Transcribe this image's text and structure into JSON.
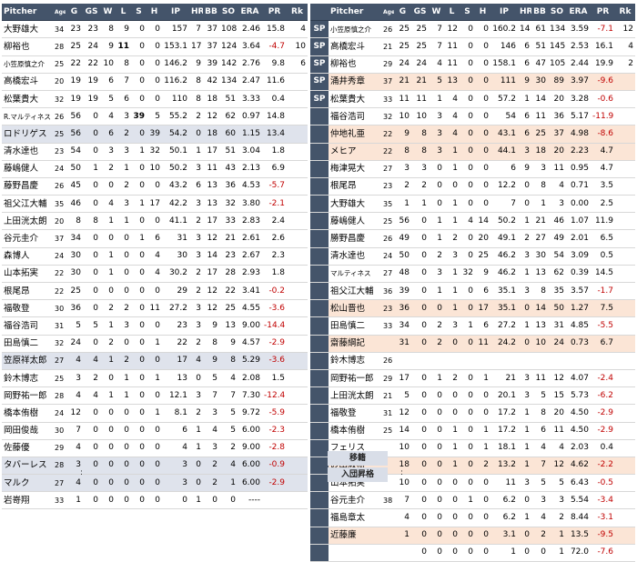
{
  "headers": {
    "pitcher": "Pitcher",
    "age": "Age",
    "g": "G",
    "gs": "GS",
    "w": "W",
    "l": "L",
    "s": "S",
    "h": "H",
    "ip": "IP",
    "hr": "HR",
    "bb": "BB",
    "so": "SO",
    "era": "ERA",
    "pr": "PR",
    "rk": "Rk"
  },
  "left_rows": [
    {
      "name": "大野雄大",
      "age": "34",
      "g": "23",
      "gs": "23",
      "w": "8",
      "l": "9",
      "s": "0",
      "h": "0",
      "ip": "157",
      "hr": "7",
      "bb": "37",
      "so": "108",
      "era": "2.46",
      "pr": "15.8",
      "rk": "4"
    },
    {
      "name": "柳裕也",
      "age": "28",
      "g": "25",
      "gs": "24",
      "w": "9",
      "l": "11",
      "s": "0",
      "h": "0",
      "ip": "153.1",
      "hr": "17",
      "bb": "37",
      "so": "124",
      "era": "3.64",
      "pr": "-4.7",
      "rk": "10"
    },
    {
      "name": "小笠原慎之介",
      "age": "25",
      "g": "22",
      "gs": "22",
      "w": "10",
      "l": "8",
      "s": "0",
      "h": "0",
      "ip": "146.2",
      "hr": "9",
      "bb": "39",
      "so": "142",
      "era": "2.76",
      "pr": "9.8",
      "rk": "6"
    },
    {
      "name": "高橋宏斗",
      "age": "20",
      "g": "19",
      "gs": "19",
      "w": "6",
      "l": "7",
      "s": "0",
      "h": "0",
      "ip": "116.2",
      "hr": "8",
      "bb": "42",
      "so": "134",
      "era": "2.47",
      "pr": "11.6",
      "rk": ""
    },
    {
      "name": "松葉貴大",
      "age": "32",
      "g": "19",
      "gs": "19",
      "w": "5",
      "l": "6",
      "s": "0",
      "h": "0",
      "ip": "110",
      "hr": "8",
      "bb": "18",
      "so": "51",
      "era": "3.33",
      "pr": "0.4",
      "rk": ""
    },
    {
      "name": "R.マルティネス",
      "age": "26",
      "g": "56",
      "gs": "0",
      "w": "4",
      "l": "3",
      "s": "39",
      "h": "5",
      "ip": "55.2",
      "hr": "2",
      "bb": "12",
      "so": "62",
      "era": "0.97",
      "pr": "14.8",
      "rk": ""
    },
    {
      "name": "ロドリゲス",
      "age": "25",
      "g": "56",
      "gs": "0",
      "w": "6",
      "l": "2",
      "s": "0",
      "h": "39",
      "ip": "54.2",
      "hr": "0",
      "bb": "18",
      "so": "60",
      "era": "1.15",
      "pr": "13.4",
      "rk": ""
    },
    {
      "name": "清水達也",
      "age": "23",
      "g": "54",
      "gs": "0",
      "w": "3",
      "l": "3",
      "s": "1",
      "h": "32",
      "ip": "50.1",
      "hr": "1",
      "bb": "17",
      "so": "51",
      "era": "3.04",
      "pr": "1.8",
      "rk": ""
    },
    {
      "name": "藤嶋健人",
      "age": "24",
      "g": "50",
      "gs": "1",
      "w": "2",
      "l": "1",
      "s": "0",
      "h": "10",
      "ip": "50.2",
      "hr": "3",
      "bb": "11",
      "so": "43",
      "era": "2.13",
      "pr": "6.9",
      "rk": ""
    },
    {
      "name": "藤野昌慶",
      "age": "26",
      "g": "45",
      "gs": "0",
      "w": "0",
      "l": "2",
      "s": "0",
      "h": "0",
      "ip": "43.2",
      "hr": "6",
      "bb": "13",
      "so": "36",
      "era": "4.53",
      "pr": "-5.7",
      "rk": ""
    },
    {
      "name": "祖父江大輔",
      "age": "35",
      "g": "46",
      "gs": "0",
      "w": "4",
      "l": "3",
      "s": "1",
      "h": "17",
      "ip": "42.2",
      "hr": "3",
      "bb": "13",
      "so": "32",
      "era": "3.80",
      "pr": "-2.1",
      "rk": ""
    },
    {
      "name": "上田洸太朗",
      "age": "20",
      "g": "8",
      "gs": "8",
      "w": "1",
      "l": "1",
      "s": "0",
      "h": "0",
      "ip": "41.1",
      "hr": "2",
      "bb": "17",
      "so": "33",
      "era": "2.83",
      "pr": "2.4",
      "rk": ""
    },
    {
      "name": "谷元圭介",
      "age": "37",
      "g": "34",
      "gs": "0",
      "w": "0",
      "l": "0",
      "s": "1",
      "h": "6",
      "ip": "31",
      "hr": "3",
      "bb": "12",
      "so": "21",
      "era": "2.61",
      "pr": "2.6",
      "rk": ""
    },
    {
      "name": "森博人",
      "age": "24",
      "g": "30",
      "gs": "0",
      "w": "1",
      "l": "0",
      "s": "0",
      "h": "4",
      "ip": "30",
      "hr": "3",
      "bb": "14",
      "so": "23",
      "era": "2.67",
      "pr": "2.3",
      "rk": ""
    },
    {
      "name": "山本拓実",
      "age": "22",
      "g": "30",
      "gs": "0",
      "w": "1",
      "l": "0",
      "s": "0",
      "h": "4",
      "ip": "30.2",
      "hr": "2",
      "bb": "17",
      "so": "28",
      "era": "2.93",
      "pr": "1.8",
      "rk": ""
    },
    {
      "name": "根尾昂",
      "age": "22",
      "g": "25",
      "gs": "0",
      "w": "0",
      "l": "0",
      "s": "0",
      "h": "0",
      "ip": "29",
      "hr": "2",
      "bb": "12",
      "so": "22",
      "era": "3.41",
      "pr": "-0.2",
      "rk": ""
    },
    {
      "name": "福敬登",
      "age": "30",
      "g": "36",
      "gs": "0",
      "w": "2",
      "l": "2",
      "s": "0",
      "h": "11",
      "ip": "27.2",
      "hr": "3",
      "bb": "12",
      "so": "25",
      "era": "4.55",
      "pr": "-3.6",
      "rk": ""
    },
    {
      "name": "福谷浩司",
      "age": "31",
      "g": "5",
      "gs": "5",
      "w": "1",
      "l": "3",
      "s": "0",
      "h": "0",
      "ip": "23",
      "hr": "3",
      "bb": "9",
      "so": "13",
      "era": "9.00",
      "pr": "-14.4",
      "rk": ""
    },
    {
      "name": "田島慎二",
      "age": "32",
      "g": "24",
      "gs": "0",
      "w": "2",
      "l": "0",
      "s": "0",
      "h": "1",
      "ip": "22",
      "hr": "2",
      "bb": "8",
      "so": "9",
      "era": "4.57",
      "pr": "-2.9",
      "rk": ""
    },
    {
      "name": "笠原祥太郎",
      "age": "27",
      "g": "4",
      "gs": "4",
      "w": "1",
      "l": "2",
      "s": "0",
      "h": "0",
      "ip": "17",
      "hr": "4",
      "bb": "9",
      "so": "8",
      "era": "5.29",
      "pr": "-3.6",
      "rk": ""
    },
    {
      "name": "鈴木博志",
      "age": "25",
      "g": "3",
      "gs": "2",
      "w": "0",
      "l": "1",
      "s": "0",
      "h": "1",
      "ip": "13",
      "hr": "0",
      "bb": "5",
      "so": "4",
      "era": "2.08",
      "pr": "1.5",
      "rk": ""
    },
    {
      "name": "岡野祐一郎",
      "age": "28",
      "g": "4",
      "gs": "4",
      "w": "1",
      "l": "1",
      "s": "0",
      "h": "0",
      "ip": "12.1",
      "hr": "3",
      "bb": "7",
      "so": "7",
      "era": "7.30",
      "pr": "-12.4",
      "rk": ""
    },
    {
      "name": "橋本侑樹",
      "age": "24",
      "g": "12",
      "gs": "0",
      "w": "0",
      "l": "0",
      "s": "0",
      "h": "1",
      "ip": "8.1",
      "hr": "2",
      "bb": "3",
      "so": "5",
      "era": "9.72",
      "pr": "-5.9",
      "rk": ""
    },
    {
      "name": "岡田俊哉",
      "age": "30",
      "g": "7",
      "gs": "0",
      "w": "0",
      "l": "0",
      "s": "0",
      "h": "0",
      "ip": "6",
      "hr": "1",
      "bb": "4",
      "so": "5",
      "era": "6.00",
      "pr": "-2.3",
      "rk": ""
    },
    {
      "name": "佐藤優",
      "age": "29",
      "g": "4",
      "gs": "0",
      "w": "0",
      "l": "0",
      "s": "0",
      "h": "0",
      "ip": "4",
      "hr": "1",
      "bb": "3",
      "so": "2",
      "era": "9.00",
      "pr": "-2.8",
      "rk": ""
    },
    {
      "name": "タバーレス",
      "age": "28",
      "g": "3",
      "gs": "0",
      "w": "0",
      "l": "0",
      "s": "0",
      "h": "0",
      "ip": "3",
      "hr": "0",
      "bb": "2",
      "so": "4",
      "era": "6.00",
      "pr": "-0.9",
      "rk": ""
    },
    {
      "name": "マルク",
      "age": "27",
      "g": "4",
      "gs": "0",
      "w": "0",
      "l": "0",
      "s": "0",
      "h": "0",
      "ip": "3",
      "hr": "0",
      "bb": "2",
      "so": "1",
      "era": "6.00",
      "pr": "-2.9",
      "rk": ""
    },
    {
      "name": "岩嵜翔",
      "age": "33",
      "g": "1",
      "gs": "0",
      "w": "0",
      "l": "0",
      "s": "0",
      "h": "0",
      "ip": "0",
      "hr": "1",
      "bb": "0",
      "so": "0",
      "era": "----",
      "pr": "",
      "rk": ""
    }
  ],
  "sp_label": "SP",
  "right_rows": [
    {
      "name": "小笠原慎之介",
      "age": "26",
      "g": "25",
      "gs": "25",
      "w": "7",
      "l": "12",
      "s": "0",
      "h": "0",
      "ip": "160.2",
      "hr": "14",
      "bb": "61",
      "so": "134",
      "era": "3.59",
      "pr": "-7.1",
      "rk": "12"
    },
    {
      "name": "高橋宏斗",
      "age": "21",
      "g": "25",
      "gs": "25",
      "w": "7",
      "l": "11",
      "s": "0",
      "h": "0",
      "ip": "146",
      "hr": "6",
      "bb": "51",
      "so": "145",
      "era": "2.53",
      "pr": "16.1",
      "rk": "4"
    },
    {
      "name": "柳裕也",
      "age": "29",
      "g": "24",
      "gs": "24",
      "w": "4",
      "l": "11",
      "s": "0",
      "h": "0",
      "ip": "158.1",
      "hr": "6",
      "bb": "47",
      "so": "105",
      "era": "2.44",
      "pr": "19.9",
      "rk": "2"
    },
    {
      "name": "涌井秀章",
      "age": "37",
      "g": "21",
      "gs": "21",
      "w": "5",
      "l": "13",
      "s": "0",
      "h": "0",
      "ip": "111",
      "hr": "9",
      "bb": "30",
      "so": "89",
      "era": "3.97",
      "pr": "-9.6",
      "rk": ""
    },
    {
      "name": "松葉貴大",
      "age": "33",
      "g": "11",
      "gs": "11",
      "w": "1",
      "l": "4",
      "s": "0",
      "h": "0",
      "ip": "57.2",
      "hr": "1",
      "bb": "14",
      "so": "20",
      "era": "3.28",
      "pr": "-0.6",
      "rk": ""
    },
    {
      "name": "福谷浩司",
      "age": "32",
      "g": "10",
      "gs": "10",
      "w": "3",
      "l": "4",
      "s": "0",
      "h": "0",
      "ip": "54",
      "hr": "6",
      "bb": "11",
      "so": "36",
      "era": "5.17",
      "pr": "-11.9",
      "rk": ""
    },
    {
      "name": "仲地礼亜",
      "age": "22",
      "g": "9",
      "gs": "8",
      "w": "3",
      "l": "4",
      "s": "0",
      "h": "0",
      "ip": "43.1",
      "hr": "6",
      "bb": "25",
      "so": "37",
      "era": "4.98",
      "pr": "-8.6",
      "rk": ""
    },
    {
      "name": "メヒア",
      "age": "22",
      "g": "8",
      "gs": "8",
      "w": "3",
      "l": "1",
      "s": "0",
      "h": "0",
      "ip": "44.1",
      "hr": "3",
      "bb": "18",
      "so": "20",
      "era": "2.23",
      "pr": "4.7",
      "rk": ""
    },
    {
      "name": "梅津晃大",
      "age": "27",
      "g": "3",
      "gs": "3",
      "w": "0",
      "l": "1",
      "s": "0",
      "h": "0",
      "ip": "6",
      "hr": "9",
      "bb": "3",
      "so": "11",
      "era": "0.95",
      "pr": "4.7",
      "rk": ""
    },
    {
      "name": "根尾昂",
      "age": "23",
      "g": "2",
      "gs": "2",
      "w": "0",
      "l": "0",
      "s": "0",
      "h": "0",
      "ip": "12.2",
      "hr": "0",
      "bb": "8",
      "so": "4",
      "era": "0.71",
      "pr": "3.5",
      "rk": ""
    },
    {
      "name": "大野雄大",
      "age": "35",
      "g": "1",
      "gs": "1",
      "w": "0",
      "l": "1",
      "s": "0",
      "h": "0",
      "ip": "7",
      "hr": "0",
      "bb": "1",
      "so": "3",
      "era": "0.00",
      "pr": "2.5",
      "rk": ""
    },
    {
      "name": "藤嶋健人",
      "age": "25",
      "g": "56",
      "gs": "0",
      "w": "1",
      "l": "1",
      "s": "4",
      "h": "14",
      "ip": "50.2",
      "hr": "1",
      "bb": "21",
      "so": "46",
      "era": "1.07",
      "pr": "11.9",
      "rk": ""
    },
    {
      "name": "勝野昌慶",
      "age": "26",
      "g": "49",
      "gs": "0",
      "w": "1",
      "l": "2",
      "s": "0",
      "h": "20",
      "ip": "49.1",
      "hr": "2",
      "bb": "27",
      "so": "49",
      "era": "2.01",
      "pr": "6.5",
      "rk": ""
    },
    {
      "name": "清水達也",
      "age": "24",
      "g": "50",
      "gs": "0",
      "w": "2",
      "l": "3",
      "s": "0",
      "h": "25",
      "ip": "46.2",
      "hr": "3",
      "bb": "30",
      "so": "54",
      "era": "3.09",
      "pr": "0.5",
      "rk": ""
    },
    {
      "name": "マルティネス",
      "age": "27",
      "g": "48",
      "gs": "0",
      "w": "3",
      "l": "1",
      "s": "32",
      "h": "9",
      "ip": "46.2",
      "hr": "1",
      "bb": "13",
      "so": "62",
      "era": "0.39",
      "pr": "14.5",
      "rk": ""
    },
    {
      "name": "祖父江大輔",
      "age": "36",
      "g": "39",
      "gs": "0",
      "w": "1",
      "l": "1",
      "s": "0",
      "h": "6",
      "ip": "35.1",
      "hr": "3",
      "bb": "8",
      "so": "35",
      "era": "3.57",
      "pr": "-1.7",
      "rk": ""
    },
    {
      "name": "松山晋也",
      "age": "23",
      "g": "36",
      "gs": "0",
      "w": "0",
      "l": "1",
      "s": "0",
      "h": "17",
      "ip": "35.1",
      "hr": "0",
      "bb": "14",
      "so": "50",
      "era": "1.27",
      "pr": "7.5",
      "rk": ""
    },
    {
      "name": "田島慎二",
      "age": "33",
      "g": "34",
      "gs": "0",
      "w": "2",
      "l": "3",
      "s": "1",
      "h": "6",
      "ip": "27.2",
      "hr": "1",
      "bb": "13",
      "so": "31",
      "era": "4.85",
      "pr": "-5.5",
      "rk": ""
    },
    {
      "name": "齋藤綱記",
      "age": "",
      "g": "31",
      "gs": "0",
      "w": "2",
      "l": "0",
      "s": "0",
      "h": "11",
      "ip": "24.2",
      "hr": "0",
      "bb": "10",
      "so": "24",
      "era": "0.73",
      "pr": "6.7",
      "rk": ""
    },
    {
      "name": "鈴木博志",
      "age": "26",
      "g": "",
      "gs": "",
      "w": "",
      "l": "",
      "s": "",
      "h": "",
      "ip": "",
      "hr": "",
      "bb": "",
      "so": "",
      "era": "",
      "pr": "",
      "rk": ""
    },
    {
      "name": "岡野祐一郎",
      "age": "29",
      "g": "17",
      "gs": "0",
      "w": "1",
      "l": "2",
      "s": "0",
      "h": "1",
      "ip": "21",
      "hr": "3",
      "bb": "11",
      "so": "12",
      "era": "4.07",
      "pr": "-2.4",
      "rk": ""
    },
    {
      "name": "上田洸太朗",
      "age": "21",
      "g": "5",
      "gs": "0",
      "w": "0",
      "l": "0",
      "s": "0",
      "h": "0",
      "ip": "20.1",
      "hr": "3",
      "bb": "5",
      "so": "15",
      "era": "5.73",
      "pr": "-6.2",
      "rk": ""
    },
    {
      "name": "福敬登",
      "age": "31",
      "g": "12",
      "gs": "0",
      "w": "0",
      "l": "0",
      "s": "0",
      "h": "0",
      "ip": "17.2",
      "hr": "1",
      "bb": "8",
      "so": "20",
      "era": "4.50",
      "pr": "-2.9",
      "rk": ""
    },
    {
      "name": "橋本侑樹",
      "age": "25",
      "g": "14",
      "gs": "0",
      "w": "0",
      "l": "1",
      "s": "0",
      "h": "1",
      "ip": "17.2",
      "hr": "1",
      "bb": "6",
      "so": "11",
      "era": "4.50",
      "pr": "-2.9",
      "rk": ""
    },
    {
      "name": "フェリス",
      "age": "",
      "g": "10",
      "gs": "0",
      "w": "0",
      "l": "1",
      "s": "0",
      "h": "1",
      "ip": "18.1",
      "hr": "1",
      "bb": "4",
      "so": "4",
      "era": "2.03",
      "pr": "0.4",
      "rk": ""
    },
    {
      "name": "砂田毅樹",
      "age": "",
      "g": "18",
      "gs": "0",
      "w": "0",
      "l": "1",
      "s": "0",
      "h": "2",
      "ip": "13.2",
      "hr": "1",
      "bb": "7",
      "so": "12",
      "era": "4.62",
      "pr": "-2.2",
      "rk": ""
    },
    {
      "name": "山本拓実",
      "age": "",
      "g": "10",
      "gs": "0",
      "w": "0",
      "l": "0",
      "s": "0",
      "h": "0",
      "ip": "11",
      "hr": "3",
      "bb": "5",
      "so": "5",
      "era": "6.43",
      "pr": "-0.5",
      "rk": ""
    },
    {
      "name": "谷元圭介",
      "age": "38",
      "g": "7",
      "gs": "0",
      "w": "0",
      "l": "0",
      "s": "1",
      "h": "0",
      "ip": "6.2",
      "hr": "0",
      "bb": "3",
      "so": "3",
      "era": "5.54",
      "pr": "-3.4",
      "rk": ""
    },
    {
      "name": "福島章太",
      "age": "",
      "g": "4",
      "gs": "0",
      "w": "0",
      "l": "0",
      "s": "0",
      "h": "0",
      "ip": "6.2",
      "hr": "1",
      "bb": "4",
      "so": "2",
      "era": "8.44",
      "pr": "-3.1",
      "rk": ""
    },
    {
      "name": "近藤廉",
      "age": "",
      "g": "1",
      "gs": "0",
      "w": "0",
      "l": "0",
      "s": "0",
      "h": "0",
      "ip": "3.1",
      "hr": "0",
      "bb": "2",
      "so": "1",
      "era": "13.5",
      "pr": "-9.5",
      "rk": ""
    },
    {
      "name": "",
      "age": "",
      "g": "",
      "gs": "0",
      "w": "0",
      "l": "0",
      "s": "0",
      "h": "0",
      "ip": "1",
      "hr": "0",
      "bb": "0",
      "so": "1",
      "era": "72.0",
      "pr": "-7.6",
      "rk": ""
    }
  ],
  "footer": {
    "transfer": "移籍",
    "joined": "入団昇格",
    "colon": ":"
  }
}
